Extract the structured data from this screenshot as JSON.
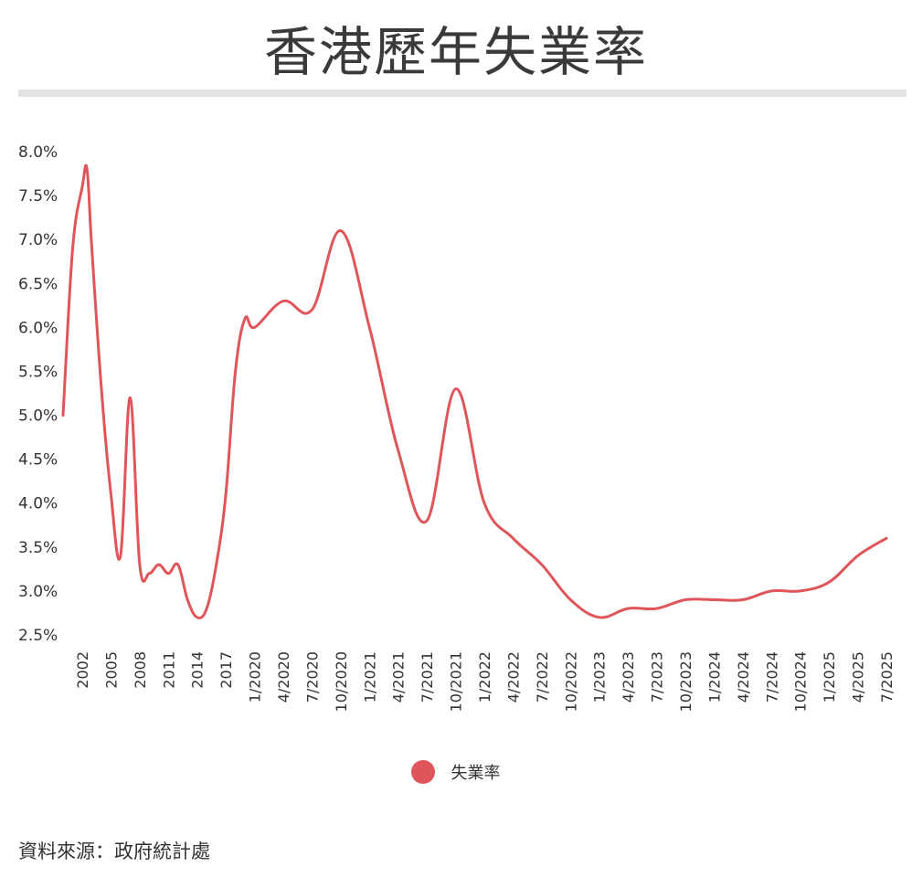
{
  "title": "香港歷年失業率",
  "source": "資料來源：政府統計處",
  "colors": {
    "series": "#e0555a",
    "rule": "#e2e2e2",
    "text": "#333333"
  },
  "chart_data": {
    "type": "line",
    "title": "香港歷年失業率",
    "xlabel": "",
    "ylabel": "",
    "ylim": [
      2.5,
      8.0
    ],
    "yticks": [
      "2.5%",
      "3.0%",
      "3.5%",
      "4.0%",
      "4.5%",
      "5.0%",
      "5.5%",
      "6.0%",
      "6.5%",
      "7.0%",
      "7.5%",
      "8.0%"
    ],
    "xtick_labels": [
      "2002",
      "2005",
      "2008",
      "2011",
      "2014",
      "2017",
      "1/2020",
      "4/2020",
      "7/2020",
      "10/2020",
      "1/2021",
      "4/2021",
      "7/2021",
      "10/2021",
      "1/2022",
      "4/2022",
      "7/2022",
      "10/2022",
      "1/2023",
      "4/2023",
      "7/2023",
      "10/2023",
      "1/2024",
      "4/2024",
      "7/2024",
      "10/2024",
      "1/2025",
      "4/2025",
      "7/2025"
    ],
    "grid": false,
    "legend_position": "bottom",
    "series": [
      {
        "name": "失業率",
        "color": "#e0555a",
        "x": [
          2000.0,
          2001.0,
          2002.0,
          2002.5,
          2003.0,
          2004.0,
          2005.0,
          2006.0,
          2007.0,
          2008.0,
          2009.0,
          2010.0,
          2011.0,
          2012.0,
          2013.0,
          2014.0,
          2015.0,
          2016.0,
          2017.0,
          2018.0,
          2019.0,
          2020.0,
          2020.25,
          2020.5,
          2020.75,
          2021.0,
          2021.25,
          2021.5,
          2021.75,
          2022.0,
          2022.25,
          2022.5,
          2022.75,
          2023.0,
          2023.25,
          2023.5,
          2023.75,
          2024.0,
          2024.25,
          2024.5,
          2024.75,
          2025.0,
          2025.25,
          2025.5
        ],
        "values": [
          5.0,
          6.9,
          7.6,
          7.8,
          6.9,
          5.3,
          4.1,
          3.4,
          5.2,
          3.3,
          3.2,
          3.3,
          3.2,
          3.3,
          2.9,
          2.7,
          2.8,
          3.3,
          4.1,
          5.5,
          6.1,
          6.0,
          6.3,
          6.2,
          7.1,
          6.0,
          4.6,
          3.8,
          5.3,
          4.0,
          3.6,
          3.3,
          2.9,
          2.7,
          2.8,
          2.8,
          2.9,
          2.9,
          2.9,
          3.0,
          3.0,
          3.1,
          3.4,
          3.6
        ]
      }
    ]
  }
}
